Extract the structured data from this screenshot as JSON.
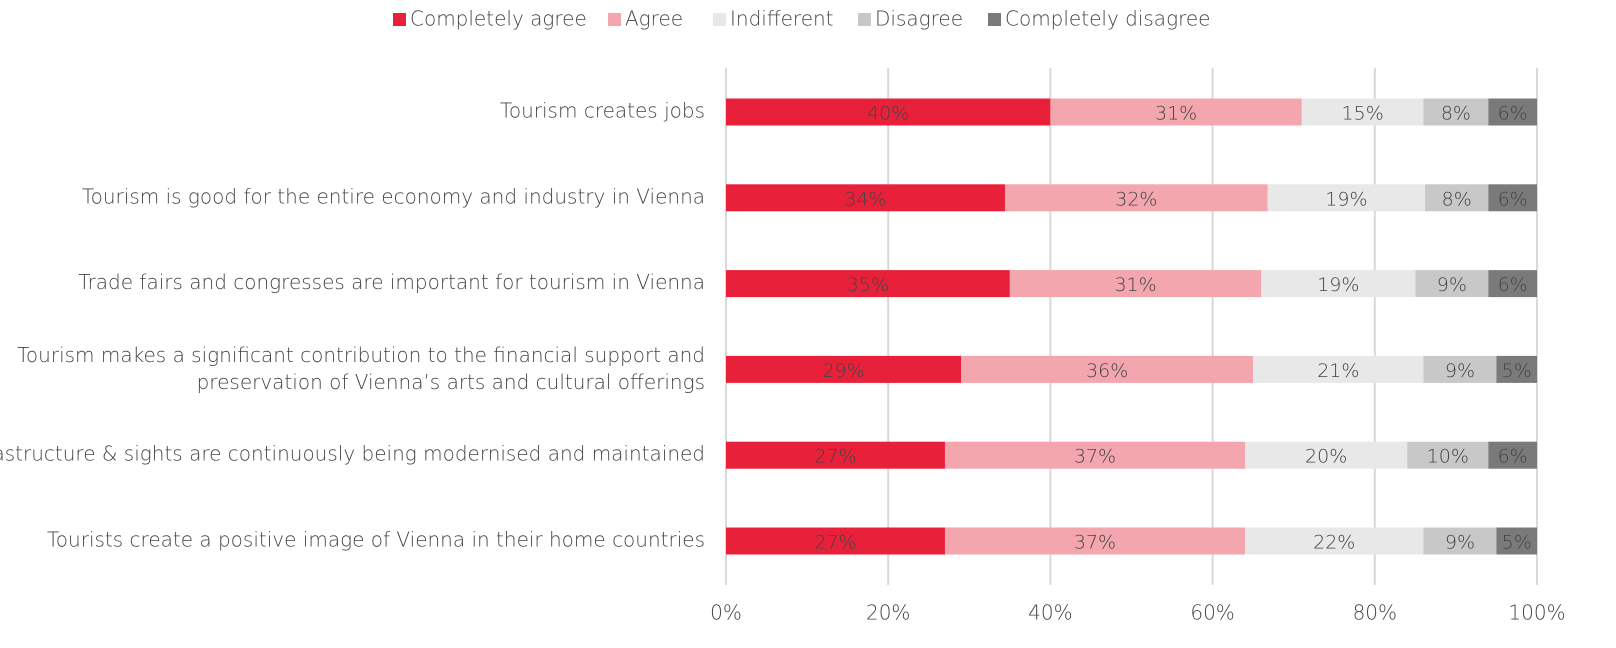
{
  "chart_data": {
    "type": "stacked-bar-horizontal",
    "categories": [
      "Tourism creates jobs",
      "Tourism is good for the entire economy and industry in Vienna",
      "Trade fairs and congresses are important for tourism in Vienna",
      "Tourism makes a significant contribution to the financial support and\npreservation of Vienna’s arts and cultural offerings",
      "Infrastructure & sights are continuously being modernised and maintained",
      "Tourists create a positive image of Vienna in their home countries"
    ],
    "series": [
      {
        "name": "Completely agree",
        "color": "#e8203a",
        "label_color": "#ffffff",
        "values": [
          40,
          34.4,
          35,
          29,
          27,
          27
        ],
        "value_labels": [
          "40%",
          "34%",
          "35%",
          "29%",
          "27%",
          "27%"
        ]
      },
      {
        "name": "Agree",
        "color": "#f4a6ae",
        "label_color": "#555555",
        "values": [
          31,
          32.4,
          31,
          36,
          37,
          37
        ],
        "value_labels": [
          "31%",
          "32%",
          "31%",
          "36%",
          "37%",
          "37%"
        ]
      },
      {
        "name": "Indifferent",
        "color": "#e8e8e8",
        "label_color": "#555555",
        "values": [
          15,
          19.4,
          19,
          21,
          20,
          22
        ],
        "value_labels": [
          "15%",
          "19%",
          "19%",
          "21%",
          "20%",
          "22%"
        ]
      },
      {
        "name": "Disagree",
        "color": "#c8c8c8",
        "label_color": "#444444",
        "values": [
          8,
          7.8,
          9,
          9,
          10,
          9
        ],
        "value_labels": [
          "8%",
          "8%",
          "9%",
          "9%",
          "10%",
          "9%"
        ]
      },
      {
        "name": "Completely disagree",
        "color": "#7a7a7a",
        "label_color": "#ffffff",
        "values": [
          6,
          6,
          6,
          5,
          6,
          5
        ],
        "value_labels": [
          "6%",
          "6%",
          "6%",
          "5%",
          "6%",
          "5%"
        ]
      }
    ],
    "xlim": [
      0,
      100
    ],
    "xticks": [
      {
        "value": 0,
        "label": "0%"
      },
      {
        "value": 20,
        "label": "20%"
      },
      {
        "value": 40,
        "label": "40%"
      },
      {
        "value": 60,
        "label": "60%"
      },
      {
        "value": 80,
        "label": "80%"
      },
      {
        "value": 100,
        "label": "100%"
      }
    ],
    "grid": true,
    "legend": "top"
  }
}
